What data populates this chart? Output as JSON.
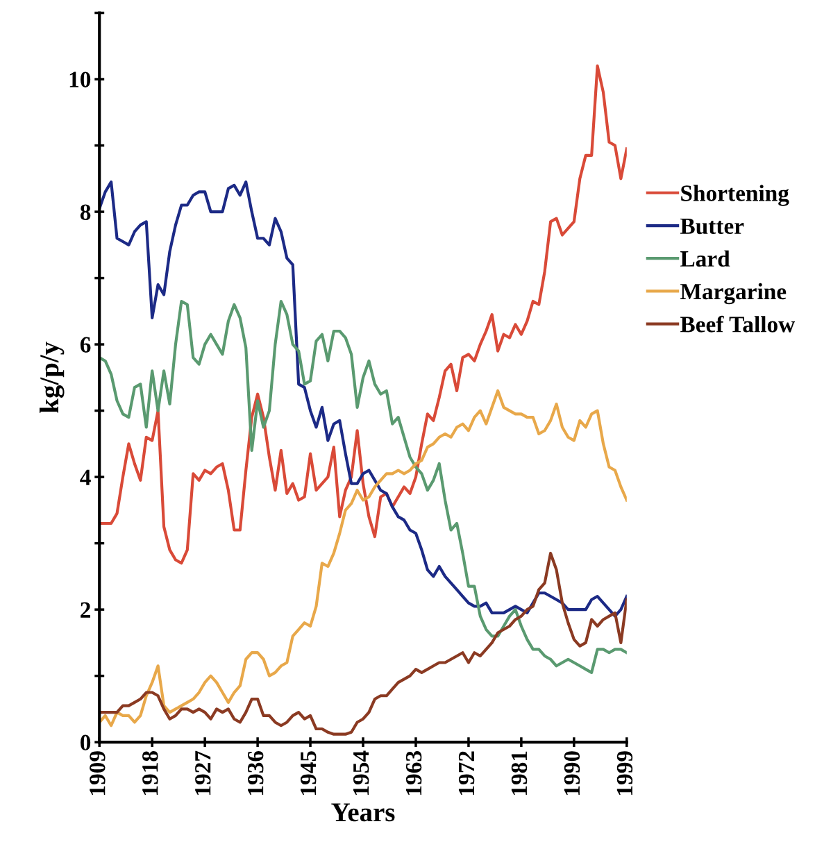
{
  "chart_data": {
    "type": "line",
    "xlabel": "Years",
    "ylabel": "kg/p/y",
    "x": [
      1909,
      1910,
      1911,
      1912,
      1913,
      1914,
      1915,
      1916,
      1917,
      1918,
      1919,
      1920,
      1921,
      1922,
      1923,
      1924,
      1925,
      1926,
      1927,
      1928,
      1929,
      1930,
      1931,
      1932,
      1933,
      1934,
      1935,
      1936,
      1937,
      1938,
      1939,
      1940,
      1941,
      1942,
      1943,
      1944,
      1945,
      1946,
      1947,
      1948,
      1949,
      1950,
      1951,
      1952,
      1953,
      1954,
      1955,
      1956,
      1957,
      1958,
      1959,
      1960,
      1961,
      1962,
      1963,
      1964,
      1965,
      1966,
      1967,
      1968,
      1969,
      1970,
      1971,
      1972,
      1973,
      1974,
      1975,
      1976,
      1977,
      1978,
      1979,
      1980,
      1981,
      1982,
      1983,
      1984,
      1985,
      1986,
      1987,
      1988,
      1989,
      1990,
      1991,
      1992,
      1993,
      1994,
      1995,
      1996,
      1997,
      1998,
      1999
    ],
    "series": [
      {
        "name": "Shortening",
        "color": "#d94a38",
        "values": [
          3.3,
          3.3,
          3.3,
          3.45,
          4.0,
          4.5,
          4.2,
          3.95,
          4.6,
          4.55,
          5.0,
          3.25,
          2.9,
          2.75,
          2.7,
          2.9,
          4.05,
          3.95,
          4.1,
          4.05,
          4.15,
          4.2,
          3.8,
          3.2,
          3.2,
          4.1,
          4.9,
          5.25,
          4.9,
          4.3,
          3.8,
          4.4,
          3.75,
          3.9,
          3.65,
          3.7,
          4.35,
          3.8,
          3.9,
          4.0,
          4.45,
          3.4,
          3.8,
          4.0,
          4.7,
          3.9,
          3.4,
          3.1,
          3.7,
          3.75,
          3.55,
          3.7,
          3.85,
          3.75,
          4.0,
          4.5,
          4.95,
          4.85,
          5.2,
          5.6,
          5.7,
          5.3,
          5.8,
          5.85,
          5.75,
          6.0,
          6.2,
          6.45,
          5.9,
          6.15,
          6.1,
          6.3,
          6.15,
          6.35,
          6.65,
          6.6,
          7.1,
          7.85,
          7.9,
          7.65,
          7.75,
          7.85,
          8.5,
          8.85,
          8.85,
          10.2,
          9.8,
          9.05,
          9.0,
          8.5,
          8.95
        ]
      },
      {
        "name": "Butter",
        "color": "#1c2a86",
        "values": [
          8.05,
          8.3,
          8.45,
          7.6,
          7.55,
          7.5,
          7.7,
          7.8,
          7.85,
          6.4,
          6.9,
          6.75,
          7.4,
          7.8,
          8.1,
          8.1,
          8.25,
          8.3,
          8.3,
          8.0,
          8.0,
          8.0,
          8.35,
          8.4,
          8.25,
          8.45,
          8.0,
          7.6,
          7.6,
          7.5,
          7.9,
          7.7,
          7.3,
          7.2,
          5.4,
          5.35,
          5.0,
          4.75,
          5.05,
          4.55,
          4.8,
          4.85,
          4.35,
          3.9,
          3.9,
          4.05,
          4.1,
          3.95,
          3.8,
          3.75,
          3.55,
          3.4,
          3.35,
          3.2,
          3.15,
          2.9,
          2.6,
          2.5,
          2.65,
          2.5,
          2.4,
          2.3,
          2.2,
          2.1,
          2.05,
          2.05,
          2.1,
          1.95,
          1.95,
          1.95,
          2.0,
          2.05,
          2.0,
          1.95,
          2.1,
          2.25,
          2.25,
          2.2,
          2.15,
          2.1,
          2.0,
          2.0,
          2.0,
          2.0,
          2.15,
          2.2,
          2.1,
          2.0,
          1.9,
          2.0,
          2.2
        ]
      },
      {
        "name": "Lard",
        "color": "#5a9a70",
        "values": [
          5.8,
          5.75,
          5.55,
          5.15,
          4.95,
          4.9,
          5.35,
          5.4,
          4.75,
          5.6,
          5.0,
          5.6,
          5.1,
          6.0,
          6.65,
          6.6,
          5.8,
          5.7,
          6.0,
          6.15,
          6.0,
          5.85,
          6.35,
          6.6,
          6.4,
          5.95,
          4.4,
          5.15,
          4.75,
          5.0,
          6.0,
          6.65,
          6.45,
          6.0,
          5.9,
          5.4,
          5.45,
          6.05,
          6.15,
          5.75,
          6.2,
          6.2,
          6.1,
          5.85,
          5.05,
          5.5,
          5.75,
          5.4,
          5.25,
          5.3,
          4.8,
          4.9,
          4.6,
          4.3,
          4.15,
          4.05,
          3.8,
          3.95,
          4.2,
          3.65,
          3.2,
          3.3,
          2.85,
          2.35,
          2.35,
          1.9,
          1.7,
          1.6,
          1.6,
          1.75,
          1.9,
          2.0,
          1.75,
          1.55,
          1.4,
          1.4,
          1.3,
          1.25,
          1.15,
          1.2,
          1.25,
          1.2,
          1.15,
          1.1,
          1.05,
          1.4,
          1.4,
          1.35,
          1.4,
          1.4,
          1.35
        ]
      },
      {
        "name": "Margarine",
        "color": "#e8a84a",
        "values": [
          0.3,
          0.4,
          0.25,
          0.45,
          0.4,
          0.4,
          0.3,
          0.4,
          0.7,
          0.9,
          1.15,
          0.55,
          0.45,
          0.5,
          0.55,
          0.6,
          0.65,
          0.75,
          0.9,
          1.0,
          0.9,
          0.75,
          0.6,
          0.75,
          0.85,
          1.25,
          1.35,
          1.35,
          1.25,
          1.0,
          1.05,
          1.15,
          1.2,
          1.6,
          1.7,
          1.8,
          1.75,
          2.05,
          2.7,
          2.65,
          2.85,
          3.15,
          3.5,
          3.6,
          3.8,
          3.65,
          3.7,
          3.85,
          3.95,
          4.05,
          4.05,
          4.1,
          4.05,
          4.1,
          4.2,
          4.25,
          4.45,
          4.5,
          4.6,
          4.65,
          4.6,
          4.75,
          4.8,
          4.7,
          4.9,
          5.0,
          4.8,
          5.05,
          5.3,
          5.05,
          5.0,
          4.95,
          4.95,
          4.9,
          4.9,
          4.65,
          4.7,
          4.85,
          5.1,
          4.75,
          4.6,
          4.55,
          4.85,
          4.75,
          4.95,
          5.0,
          4.5,
          4.15,
          4.1,
          3.85,
          3.65
        ]
      },
      {
        "name": "Beef Tallow",
        "color": "#8b3a22",
        "values": [
          0.45,
          0.45,
          0.45,
          0.45,
          0.55,
          0.55,
          0.6,
          0.65,
          0.75,
          0.75,
          0.7,
          0.5,
          0.35,
          0.4,
          0.5,
          0.5,
          0.45,
          0.5,
          0.45,
          0.35,
          0.5,
          0.45,
          0.5,
          0.35,
          0.3,
          0.45,
          0.65,
          0.65,
          0.4,
          0.4,
          0.3,
          0.25,
          0.3,
          0.4,
          0.45,
          0.35,
          0.4,
          0.2,
          0.2,
          0.15,
          0.12,
          0.12,
          0.12,
          0.15,
          0.3,
          0.35,
          0.45,
          0.65,
          0.7,
          0.7,
          0.8,
          0.9,
          0.95,
          1.0,
          1.1,
          1.05,
          1.1,
          1.15,
          1.2,
          1.2,
          1.25,
          1.3,
          1.35,
          1.2,
          1.35,
          1.3,
          1.4,
          1.5,
          1.65,
          1.7,
          1.75,
          1.85,
          1.9,
          2.0,
          2.05,
          2.3,
          2.4,
          2.85,
          2.6,
          2.1,
          1.8,
          1.55,
          1.45,
          1.5,
          1.85,
          1.75,
          1.85,
          1.9,
          1.95,
          1.5,
          2.15
        ]
      }
    ],
    "xlim": [
      1909,
      1999
    ],
    "xticks": [
      1909,
      1918,
      1927,
      1936,
      1945,
      1954,
      1963,
      1972,
      1981,
      1990,
      1999
    ],
    "ylim": [
      0,
      11
    ],
    "yticks": [
      0,
      {
        "value": 1,
        "label": null
      },
      2,
      {
        "value": 3,
        "label": null
      },
      4,
      {
        "value": 5,
        "label": null
      },
      6,
      {
        "value": 7,
        "label": null
      },
      8,
      {
        "value": 9,
        "label": null
      },
      10,
      {
        "value": 11,
        "label": null
      }
    ],
    "grid": false,
    "legend": "right",
    "marker": "none",
    "line_style": "solid"
  }
}
